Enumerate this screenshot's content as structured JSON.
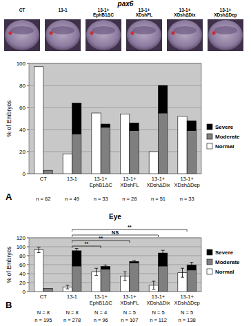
{
  "images": {
    "title": "pax6",
    "labels": [
      "CT",
      "13-1",
      "13-1+ EphB1ΔC",
      "13-1+ XDshFL",
      "13-1+ XDshΔDix",
      "13-1+ XDshΔDep"
    ]
  },
  "chart_data": [
    {
      "type": "bar",
      "panel_label": "A",
      "y_label": "% of Embryos",
      "categories": [
        "CT",
        "13-1",
        "13-1+ EphB1ΔC",
        "13-1+ XDshFL",
        "13-1+ XDshΔDix",
        "13-1+ XDshΔDep"
      ],
      "series": [
        {
          "name": "Normal",
          "type": "bar",
          "color": "#ffffff",
          "values": [
            97,
            18,
            55,
            54,
            20,
            52
          ]
        },
        {
          "name": "Moderate",
          "type": "stacked_bar",
          "color": "#7f7f7f",
          "values": [
            3,
            36,
            42,
            39,
            55,
            39
          ]
        },
        {
          "name": "Severe",
          "type": "stacked_bar",
          "color": "#000000",
          "values": [
            0,
            28,
            3,
            7,
            25,
            9
          ]
        }
      ],
      "ylim": [
        0,
        100
      ],
      "yticks": [
        0,
        20,
        40,
        60,
        80,
        100
      ],
      "grid": true,
      "legend": "right",
      "stacked": true,
      "count_labels": [
        [
          "n = 62",
          "n = 49",
          "n = 33",
          "n = 28",
          "n = 51",
          "n = 33"
        ]
      ]
    },
    {
      "type": "bar",
      "panel_label": "B",
      "title": "Eye",
      "y_label": "% of Embryos",
      "categories": [
        "CT",
        "13-1",
        "13-1+ EphB1ΔC",
        "13-1+ XDshFL",
        "13-1+ XDshΔDix",
        "13-1+ XDshΔDep"
      ],
      "series": [
        {
          "name": "Normal",
          "type": "bar",
          "color": "#ffffff",
          "values": [
            93,
            10,
            44,
            34,
            14,
            42
          ],
          "errors": [
            6,
            4,
            8,
            10,
            9,
            10
          ]
        },
        {
          "name": "Moderate",
          "type": "stacked_bar",
          "color": "#7f7f7f",
          "values": [
            7,
            57,
            50,
            64,
            57,
            48
          ]
        },
        {
          "name": "Severe",
          "type": "stacked_bar",
          "color": "#000000",
          "values": [
            0,
            34,
            6,
            3,
            29,
            11
          ],
          "errors": [
            null,
            5,
            3,
            2,
            6,
            6
          ]
        }
      ],
      "ylim": [
        0,
        120
      ],
      "yticks": [
        0,
        20,
        40,
        60,
        80,
        100,
        120
      ],
      "grid": true,
      "legend": "right",
      "stacked": true,
      "count_labels": [
        [
          "N = 8",
          "N = 8",
          "N = 4",
          "N = 5",
          "N = 5",
          "N = 5"
        ],
        [
          "n = 195",
          "n = 278",
          "n = 96",
          "n = 107",
          "n = 112",
          "n = 138"
        ]
      ],
      "comparisons": [
        {
          "from": 1,
          "to": 2,
          "label": "**"
        },
        {
          "from": 1,
          "to": 3,
          "label": "**"
        },
        {
          "from": 1,
          "to": 4,
          "label": "NS"
        },
        {
          "from": 1,
          "to": 5,
          "label": "**"
        }
      ]
    }
  ]
}
